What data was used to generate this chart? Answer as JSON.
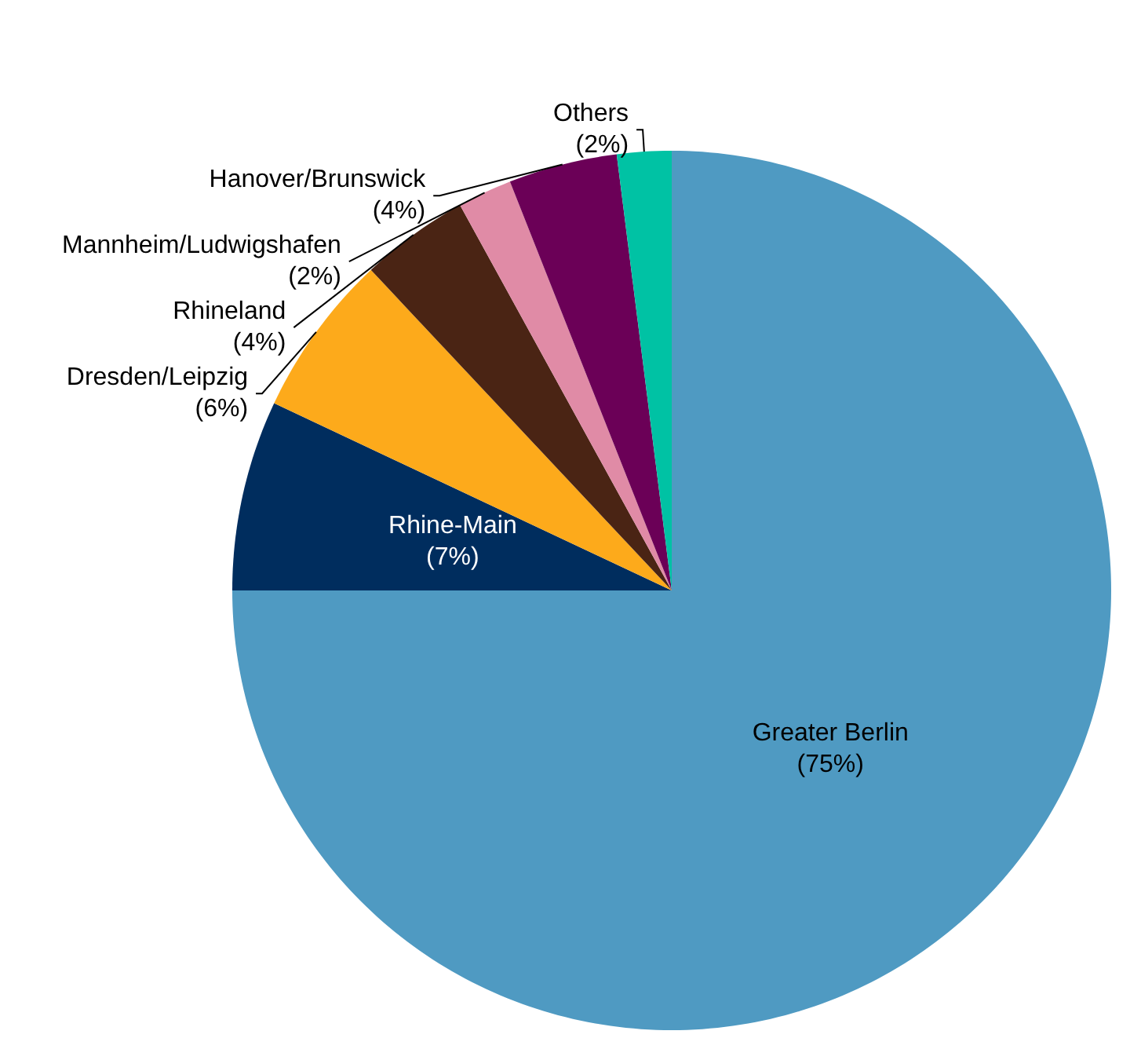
{
  "chart_data": {
    "type": "pie",
    "categories": [
      "Greater Berlin",
      "Rhine-Main",
      "Dresden/Leipzig",
      "Rhineland",
      "Mannheim/Ludwigshafen",
      "Hanover/Brunswick",
      "Others"
    ],
    "values": [
      75,
      7,
      6,
      4,
      2,
      4,
      2
    ],
    "value_labels": [
      "(75%)",
      "(7%)",
      "(6%)",
      "(4%)",
      "(2%)",
      "(4%)",
      "(2%)"
    ],
    "colors": [
      "#4f9ac2",
      "#002d5e",
      "#fdaa1b",
      "#4a2414",
      "#e08ba6",
      "#6b0057",
      "#00c2a4"
    ],
    "legend": false
  }
}
